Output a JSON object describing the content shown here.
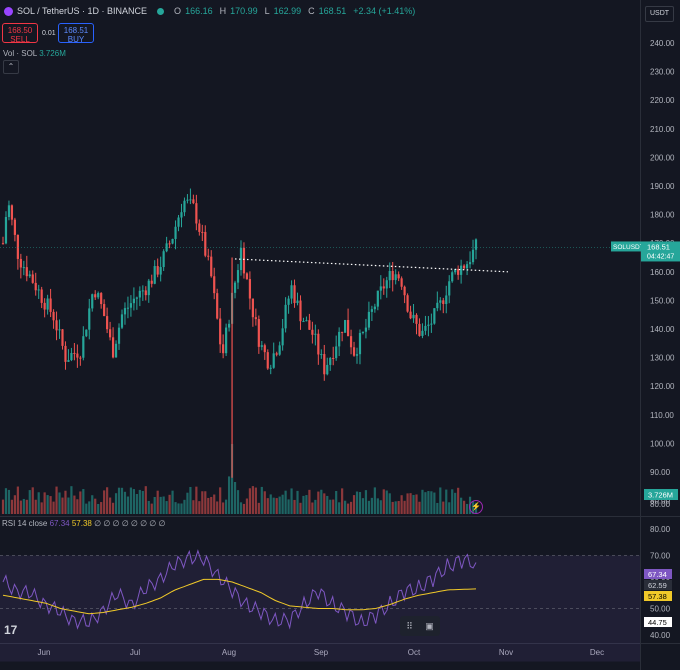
{
  "header": {
    "symbol": "SOL / TetherUS · 1D · BINANCE",
    "symbol_icon": "solana-icon",
    "ohlc": [
      {
        "k": "O",
        "v": "166.16"
      },
      {
        "k": "H",
        "v": "170.99"
      },
      {
        "k": "L",
        "v": "162.99"
      },
      {
        "k": "C",
        "v": "168.51"
      },
      {
        "k": "",
        "v": "+2.34 (+1.41%)"
      }
    ],
    "currency": "USDT"
  },
  "trade": {
    "sell_price": "168.50",
    "sell_label": "SELL",
    "buy_price": "168.51",
    "buy_label": "BUY",
    "spread": "0.01"
  },
  "volume": {
    "label": "Vol · SOL",
    "value": "3.726M",
    "badge": "3.726M"
  },
  "rsi": {
    "label": "RSI 14 close",
    "v1": "67.34",
    "v2": "57.38",
    "nulls": "∅ ∅ ∅ ∅ ∅ ∅ ∅ ∅",
    "badges": [
      "67.34",
      "62.59",
      "57.38",
      "44.75"
    ]
  },
  "price_badge": {
    "symbol": "SOLUSDT",
    "price": "168.51",
    "countdown": "04:42:47"
  },
  "price_axis": [
    "240.00",
    "230.00",
    "220.00",
    "210.00",
    "200.00",
    "190.00",
    "180.00",
    "170.00",
    "160.00",
    "150.00",
    "140.00",
    "130.00",
    "120.00",
    "110.00",
    "100.00",
    "90.00",
    "80.00"
  ],
  "rsi_axis": [
    "80.00",
    "70.00",
    "60.00",
    "50.00",
    "40.00"
  ],
  "time_axis": [
    "Jun",
    "Jul",
    "Aug",
    "Sep",
    "Oct",
    "Nov",
    "Dec"
  ],
  "colors": {
    "up": "#26a69a",
    "down": "#ef5350",
    "rsi": "#7e57c2",
    "rsi_ma": "#f0c929"
  },
  "chart_data": [
    {
      "type": "candlestick",
      "xlabel": "",
      "ylabel": "",
      "ylim": [
        77,
        248
      ],
      "x_ticks": [
        "Jun",
        "Jul",
        "Aug",
        "Sep",
        "Oct",
        "Nov",
        "Dec"
      ],
      "keypoints": [
        [
          0,
          170
        ],
        [
          3,
          185
        ],
        [
          10,
          165
        ],
        [
          18,
          158
        ],
        [
          26,
          150
        ],
        [
          32,
          145
        ],
        [
          40,
          130
        ],
        [
          50,
          133
        ],
        [
          58,
          155
        ],
        [
          64,
          146
        ],
        [
          70,
          132
        ],
        [
          76,
          145
        ],
        [
          83,
          150
        ],
        [
          92,
          155
        ],
        [
          100,
          162
        ],
        [
          108,
          172
        ],
        [
          115,
          185
        ],
        [
          122,
          182
        ],
        [
          127,
          172
        ],
        [
          133,
          158
        ],
        [
          140,
          130
        ],
        [
          146,
          150
        ],
        [
          152,
          168
        ],
        [
          158,
          150
        ],
        [
          164,
          135
        ],
        [
          170,
          128
        ],
        [
          176,
          135
        ],
        [
          184,
          155
        ],
        [
          190,
          145
        ],
        [
          198,
          138
        ],
        [
          205,
          126
        ],
        [
          211,
          133
        ],
        [
          218,
          143
        ],
        [
          224,
          132
        ],
        [
          230,
          138
        ],
        [
          237,
          148
        ],
        [
          243,
          155
        ],
        [
          249,
          160
        ],
        [
          254,
          158
        ],
        [
          260,
          145
        ],
        [
          267,
          138
        ],
        [
          273,
          142
        ],
        [
          279,
          148
        ],
        [
          285,
          157
        ],
        [
          290,
          161
        ],
        [
          296,
          163
        ],
        [
          302,
          168.5
        ]
      ],
      "resistance_line": {
        "from": 164.5,
        "to": 160,
        "style": "dotted"
      },
      "volume_peak": "early August"
    },
    {
      "type": "line",
      "xlabel": "",
      "ylabel": "",
      "ylim": [
        38,
        82
      ],
      "series": [
        {
          "values": [
            60,
            57,
            55,
            52,
            48,
            46,
            44,
            50,
            55,
            52,
            57,
            62,
            66,
            70,
            68,
            63,
            56,
            52,
            48,
            46,
            45,
            52,
            56,
            52,
            48,
            45,
            47,
            52,
            56,
            58,
            61,
            66,
            68,
            67.34
          ]
        },
        {
          "values": [
            55,
            54,
            53,
            52,
            50,
            49,
            48,
            48.5,
            49.5,
            50.5,
            52,
            54,
            57,
            59,
            61,
            61,
            60,
            58,
            56,
            53,
            51,
            50.5,
            50,
            50,
            49.5,
            49.5,
            50,
            51.5,
            53.5,
            55,
            56,
            57,
            57.2,
            57.38
          ]
        }
      ],
      "bands": [
        30,
        50,
        70
      ]
    }
  ]
}
